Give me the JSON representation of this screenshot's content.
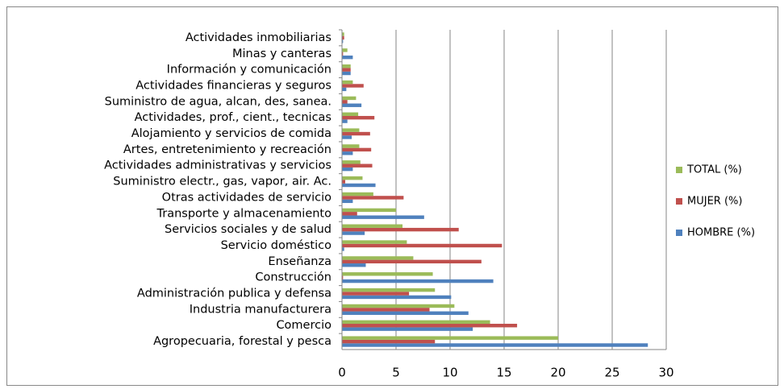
{
  "chart_data": {
    "type": "barh",
    "categories": [
      "Agropecuaria, forestal y pesca",
      "Comercio",
      "Industria manufacturera",
      "Administración publica y defensa",
      "Construcción",
      "Enseñanza",
      "Servicio doméstico",
      "Servicios sociales y de salud",
      "Transporte y almacenamiento",
      "Otras actividades de servicio",
      "Suministro electr., gas, vapor, air. Ac.",
      "Actividades administrativas y servicios",
      "Artes, entretenimiento y recreación",
      "Alojamiento y servicios de comida",
      "Actividades, prof., cient., tecnicas",
      "Suministro de agua, alcan, des, sanea.",
      "Actividades financieras y seguros",
      "Información y comunicación",
      "Minas y canteras",
      "Actividades inmobiliarias"
    ],
    "series": [
      {
        "name": "HOMBRE (%)",
        "color": "#4f81bd",
        "values": [
          28.3,
          12.1,
          11.7,
          10.1,
          14.0,
          2.2,
          0.2,
          2.1,
          7.6,
          1.0,
          3.1,
          1.0,
          1.0,
          0.9,
          0.5,
          1.8,
          0.4,
          0.8,
          1.0,
          0.1
        ]
      },
      {
        "name": "MUJER (%)",
        "color": "#c0504d",
        "values": [
          8.6,
          16.2,
          8.1,
          6.2,
          0.1,
          12.9,
          14.8,
          10.8,
          1.4,
          5.7,
          0.3,
          2.8,
          2.7,
          2.6,
          3.0,
          0.5,
          2.0,
          0.8,
          0.1,
          0.2
        ]
      },
      {
        "name": "TOTAL (%)",
        "color": "#9bbb59",
        "values": [
          20.0,
          13.7,
          10.4,
          8.6,
          8.4,
          6.6,
          6.0,
          5.6,
          5.0,
          2.9,
          1.9,
          1.7,
          1.6,
          1.6,
          1.5,
          1.3,
          1.0,
          0.8,
          0.5,
          0.2
        ]
      }
    ],
    "xlim": [
      0,
      30
    ],
    "xticks": [
      0,
      5,
      10,
      15,
      20,
      25,
      30
    ],
    "grid": true,
    "legend": "right"
  }
}
